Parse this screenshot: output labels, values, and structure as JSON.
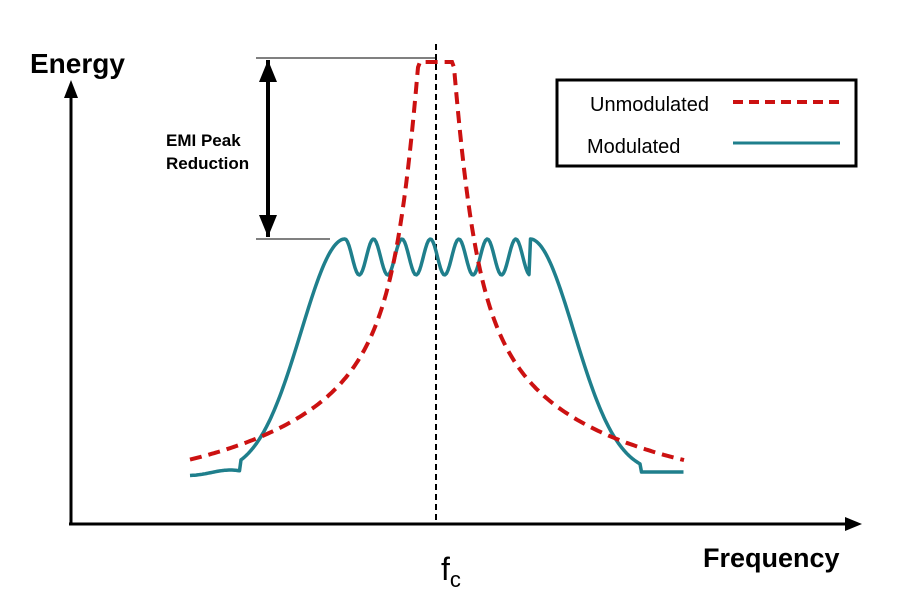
{
  "axes": {
    "y_label": "Energy",
    "x_label": "Frequency"
  },
  "center_marker": {
    "symbol": "f",
    "subscript": "c"
  },
  "annotation": {
    "line1": "EMI Peak",
    "line2": "Reduction"
  },
  "legend": {
    "items": [
      {
        "label": "Unmodulated",
        "color": "#cc1111",
        "style": "dashed"
      },
      {
        "label": "Modulated",
        "color": "#1f7f8c",
        "style": "solid"
      }
    ]
  },
  "colors": {
    "axis": "#000000",
    "unmodulated": "#cc1111",
    "modulated": "#1f7f8c"
  }
}
